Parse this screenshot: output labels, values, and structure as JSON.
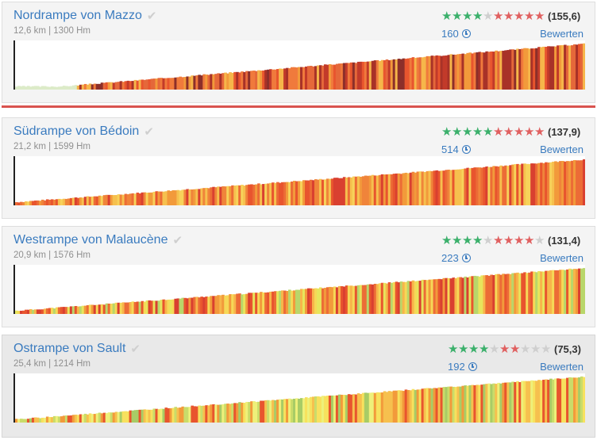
{
  "climbs": [
    {
      "title": "Nordrampe von Mazzo",
      "meta": "12,6 km | 1300 Hm",
      "stars_green": 4,
      "stars_red": 5,
      "stars_total": 5,
      "score": "(155,6)",
      "count": "160",
      "rate_label": "Bewerten",
      "ramp_start": 0.08,
      "profile_seed": 3,
      "steepness": "very-steep"
    },
    {
      "title": "Südrampe von Bédoin",
      "meta": "21,2 km | 1599 Hm",
      "stars_green": 5,
      "stars_red": 5,
      "stars_total": 5,
      "score": "(137,9)",
      "count": "514",
      "rate_label": "Bewerten",
      "ramp_start": 0.0,
      "profile_seed": 7,
      "steepness": "steep"
    },
    {
      "title": "Westrampe von Malaucène",
      "meta": "20,9 km | 1576 Hm",
      "stars_green": 4,
      "stars_red": 4,
      "stars_total": 5,
      "score": "(131,4)",
      "count": "223",
      "rate_label": "Bewerten",
      "ramp_start": 0.0,
      "profile_seed": 11,
      "steepness": "mixed"
    },
    {
      "title": "Ostrampe von Sault",
      "meta": "25,4 km | 1214 Hm",
      "stars_green": 4,
      "stars_red": 2,
      "stars_total": 5,
      "score": "(75,3)",
      "count": "192",
      "rate_label": "Bewerten",
      "ramp_start": 0.0,
      "profile_seed": 19,
      "steepness": "moderate"
    }
  ],
  "colors": {
    "link": "#3a7bbf",
    "star_green": "#3bb06b",
    "star_red": "#e06060",
    "divider": "#d9534f"
  },
  "icons": {
    "check": "check-icon",
    "clock": "clock-icon",
    "star": "star-icon"
  }
}
